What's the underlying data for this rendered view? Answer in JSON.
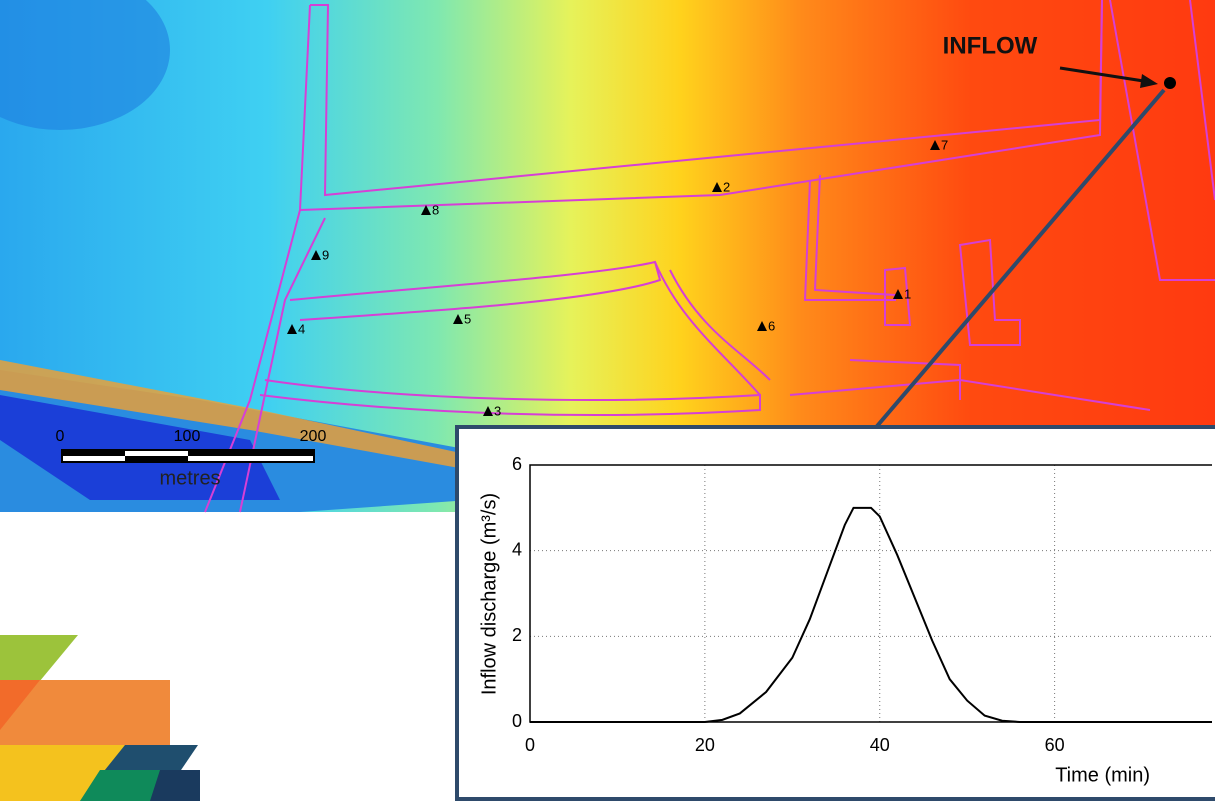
{
  "map": {
    "inflow_label": "INFLOW",
    "gauges": [
      "1",
      "2",
      "3",
      "4",
      "5",
      "6",
      "7",
      "8",
      "9"
    ],
    "scale_bar": {
      "ticks": [
        "0",
        "100",
        "200"
      ],
      "unit": "metres"
    }
  },
  "chart_data": {
    "type": "line",
    "xlabel": "Time (min)",
    "ylabel": "Inflow discharge (m³/s)",
    "x": [
      0,
      20,
      22,
      24,
      27,
      30,
      32,
      34,
      36,
      37,
      39,
      40,
      42,
      44,
      46,
      48,
      50,
      52,
      54,
      56,
      78
    ],
    "series": [
      {
        "color": "#000000",
        "values": [
          0,
          0,
          0.05,
          0.2,
          0.7,
          1.5,
          2.4,
          3.5,
          4.6,
          5.0,
          5.0,
          4.8,
          3.9,
          2.9,
          1.9,
          1.0,
          0.5,
          0.15,
          0.03,
          0,
          0
        ]
      }
    ],
    "xlim": [
      0,
      78
    ],
    "ylim": [
      0,
      6
    ],
    "xticks": [
      0,
      20,
      40,
      60
    ],
    "yticks": [
      0,
      2,
      4,
      6
    ],
    "grid": true
  }
}
